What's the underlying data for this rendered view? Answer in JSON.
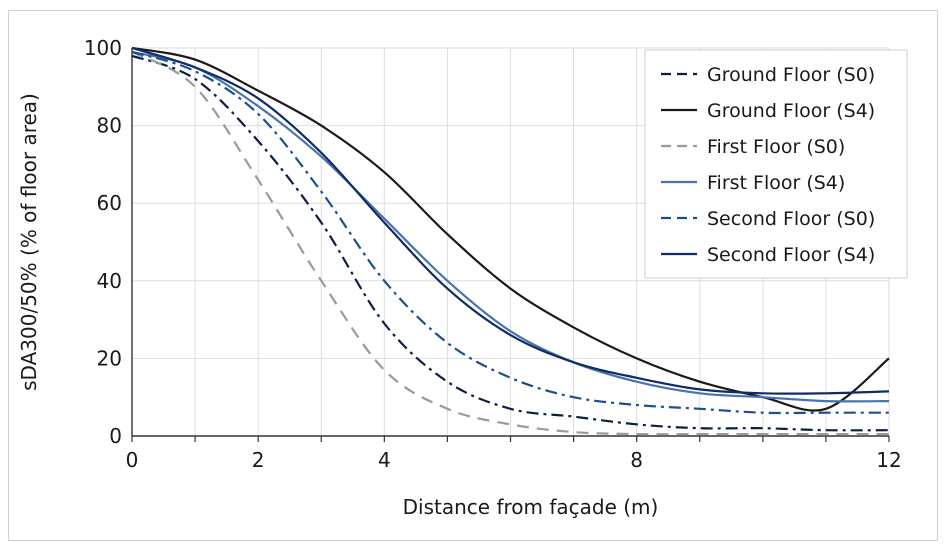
{
  "chart_data": {
    "type": "line",
    "title": "",
    "xlabel": "Distance from façade (m)",
    "ylabel": "sDA300/50% (% of floor area)",
    "xlim": [
      0,
      12
    ],
    "ylim": [
      0,
      100
    ],
    "xticks": [
      0,
      2,
      4,
      8,
      12
    ],
    "yticks": [
      0,
      20,
      40,
      60,
      80,
      100
    ],
    "grid": true,
    "legend_position": "top-right",
    "x": [
      0,
      1,
      2,
      3,
      4,
      5,
      6,
      7,
      8,
      9,
      10,
      11,
      12
    ],
    "series": [
      {
        "name": "Ground Floor (S0)",
        "color": "#0d1e45",
        "dash": "dash-dot",
        "values": [
          98,
          92,
          76,
          55,
          29,
          14,
          7,
          5,
          3,
          2,
          2,
          1.5,
          1.5
        ]
      },
      {
        "name": "Ground Floor (S4)",
        "color": "#1a1a1a",
        "dash": "solid",
        "values": [
          100,
          97,
          89,
          80,
          68,
          52,
          38,
          28,
          20,
          14,
          10,
          7,
          20
        ]
      },
      {
        "name": "First Floor (S0)",
        "color": "#9a9a9a",
        "dash": "dash",
        "values": [
          99,
          90,
          66,
          40,
          17,
          7,
          3,
          1,
          0.5,
          0.5,
          0.5,
          0.5,
          0.5
        ]
      },
      {
        "name": "First Floor (S4)",
        "color": "#4a72ae",
        "dash": "solid",
        "values": [
          99,
          95,
          85,
          72,
          56,
          40,
          27,
          19,
          14,
          11,
          10,
          9,
          9
        ]
      },
      {
        "name": "Second Floor (S0)",
        "color": "#1d4f8c",
        "dash": "dash-dot",
        "values": [
          99,
          94,
          83,
          63,
          40,
          24,
          15,
          10,
          8,
          7,
          6,
          6,
          6
        ]
      },
      {
        "name": "Second Floor (S4)",
        "color": "#0f2c66",
        "dash": "solid",
        "values": [
          100,
          95,
          87,
          73,
          55,
          38,
          26,
          19,
          15,
          12,
          11,
          11,
          11.5
        ]
      }
    ]
  }
}
